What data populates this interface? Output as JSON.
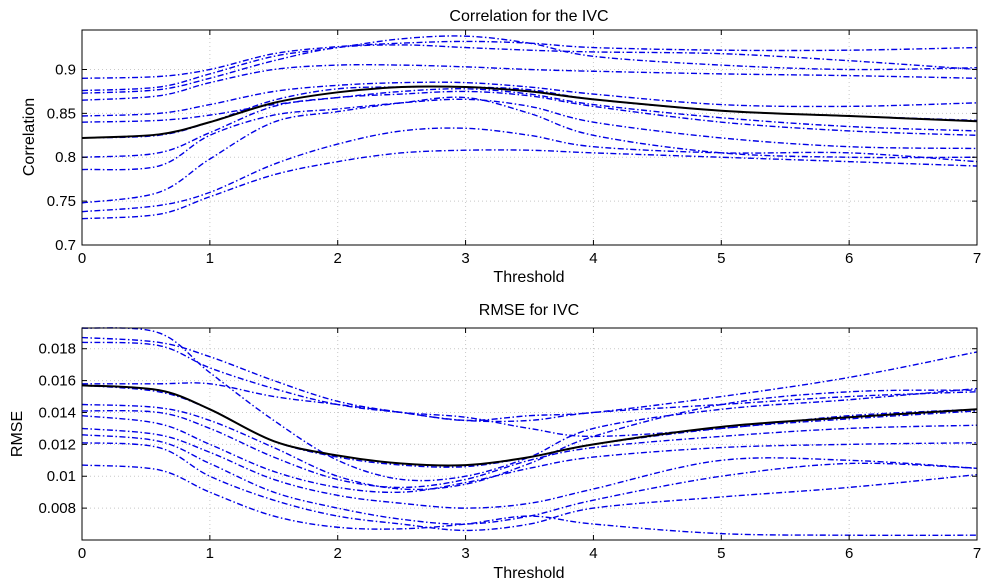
{
  "colors": {
    "series": "#0000e6",
    "mean": "#000000"
  },
  "chart_data": [
    {
      "type": "line",
      "title": "Correlation for the IVC",
      "xlabel": "Threshold",
      "ylabel": "Correlation",
      "xlim": [
        0,
        7
      ],
      "ylim": [
        0.7,
        0.945
      ],
      "xticks": [
        "0",
        "1",
        "2",
        "3",
        "4",
        "5",
        "6",
        "7"
      ],
      "yticks": [
        "0.7",
        "0.75",
        "0.8",
        "0.85",
        "0.9"
      ],
      "grid": true,
      "x": [
        0,
        0.6,
        1,
        1.5,
        2,
        2.5,
        3,
        3.5,
        4,
        5,
        6,
        7
      ],
      "series": [
        {
          "values": [
            0.89,
            0.892,
            0.9,
            0.918,
            0.926,
            0.93,
            0.932,
            0.93,
            0.925,
            0.922,
            0.922,
            0.925
          ]
        },
        {
          "values": [
            0.876,
            0.88,
            0.895,
            0.915,
            0.925,
            0.935,
            0.938,
            0.93,
            0.915,
            0.905,
            0.9,
            0.902
          ]
        },
        {
          "values": [
            0.873,
            0.877,
            0.89,
            0.91,
            0.925,
            0.928,
            0.925,
            0.922,
            0.92,
            0.918,
            0.91,
            0.9
          ]
        },
        {
          "values": [
            0.865,
            0.87,
            0.885,
            0.9,
            0.905,
            0.905,
            0.903,
            0.9,
            0.898,
            0.895,
            0.893,
            0.89
          ]
        },
        {
          "values": [
            0.847,
            0.85,
            0.86,
            0.875,
            0.882,
            0.885,
            0.885,
            0.88,
            0.872,
            0.86,
            0.858,
            0.862
          ]
        },
        {
          "values": [
            0.822,
            0.825,
            0.84,
            0.865,
            0.878,
            0.88,
            0.88,
            0.877,
            0.866,
            0.853,
            0.847,
            0.842
          ]
        },
        {
          "values": [
            0.84,
            0.842,
            0.848,
            0.86,
            0.868,
            0.875,
            0.878,
            0.872,
            0.86,
            0.845,
            0.835,
            0.83
          ]
        },
        {
          "values": [
            0.8,
            0.805,
            0.828,
            0.858,
            0.868,
            0.872,
            0.875,
            0.87,
            0.858,
            0.84,
            0.83,
            0.825
          ]
        },
        {
          "values": [
            0.786,
            0.79,
            0.825,
            0.848,
            0.855,
            0.862,
            0.866,
            0.858,
            0.84,
            0.822,
            0.812,
            0.81
          ]
        },
        {
          "values": [
            0.748,
            0.76,
            0.798,
            0.84,
            0.852,
            0.862,
            0.868,
            0.85,
            0.825,
            0.805,
            0.8,
            0.8
          ]
        },
        {
          "values": [
            0.738,
            0.745,
            0.76,
            0.792,
            0.815,
            0.83,
            0.833,
            0.825,
            0.812,
            0.805,
            0.805,
            0.795
          ]
        },
        {
          "values": [
            0.73,
            0.735,
            0.755,
            0.78,
            0.795,
            0.805,
            0.808,
            0.808,
            0.805,
            0.8,
            0.795,
            0.79
          ]
        }
      ],
      "mean": [
        0.822,
        0.826,
        0.84,
        0.862,
        0.874,
        0.88,
        0.88,
        0.875,
        0.866,
        0.853,
        0.847,
        0.841
      ]
    },
    {
      "type": "line",
      "title": "RMSE for IVC",
      "xlabel": "Threshold",
      "ylabel": "RMSE",
      "xlim": [
        0,
        7
      ],
      "ylim": [
        0.006,
        0.0193
      ],
      "xticks": [
        "0",
        "1",
        "2",
        "3",
        "4",
        "5",
        "6",
        "7"
      ],
      "yticks": [
        "0.008",
        "0.01",
        "0.012",
        "0.014",
        "0.016",
        "0.018"
      ],
      "grid": true,
      "x": [
        0,
        0.6,
        1,
        1.5,
        2,
        2.5,
        3,
        3.5,
        4,
        5,
        6,
        7
      ],
      "series": [
        {
          "values": [
            0.0193,
            0.019,
            0.0165,
            0.0135,
            0.011,
            0.0098,
            0.01,
            0.0112,
            0.013,
            0.0142,
            0.0148,
            0.0155
          ]
        },
        {
          "values": [
            0.0187,
            0.0184,
            0.0175,
            0.016,
            0.0147,
            0.014,
            0.0135,
            0.0135,
            0.014,
            0.0145,
            0.015,
            0.0153
          ]
        },
        {
          "values": [
            0.0184,
            0.0182,
            0.0168,
            0.0155,
            0.0145,
            0.014,
            0.0137,
            0.013,
            0.0125,
            0.013,
            0.0138,
            0.0142
          ]
        },
        {
          "values": [
            0.0158,
            0.0158,
            0.0158,
            0.015,
            0.0145,
            0.014,
            0.0135,
            0.0138,
            0.014,
            0.015,
            0.0162,
            0.0178
          ]
        },
        {
          "values": [
            0.0157,
            0.0153,
            0.0142,
            0.0122,
            0.0112,
            0.0107,
            0.0106,
            0.0112,
            0.012,
            0.013,
            0.0136,
            0.0141
          ]
        },
        {
          "values": [
            0.0145,
            0.0143,
            0.0135,
            0.0118,
            0.01,
            0.0092,
            0.0095,
            0.0108,
            0.0125,
            0.0145,
            0.0153,
            0.0154
          ]
        },
        {
          "values": [
            0.0141,
            0.014,
            0.013,
            0.0112,
            0.0098,
            0.0093,
            0.0098,
            0.011,
            0.0118,
            0.0125,
            0.013,
            0.0132
          ]
        },
        {
          "values": [
            0.0138,
            0.0133,
            0.012,
            0.0103,
            0.0093,
            0.009,
            0.0096,
            0.0105,
            0.0112,
            0.0118,
            0.012,
            0.0121
          ]
        },
        {
          "values": [
            0.013,
            0.0126,
            0.0115,
            0.0098,
            0.0088,
            0.0083,
            0.008,
            0.0083,
            0.0092,
            0.011,
            0.011,
            0.0105
          ]
        },
        {
          "values": [
            0.0126,
            0.0122,
            0.0108,
            0.009,
            0.008,
            0.0073,
            0.007,
            0.0075,
            0.0085,
            0.01,
            0.0108,
            0.0105
          ]
        },
        {
          "values": [
            0.0121,
            0.0118,
            0.01,
            0.0085,
            0.0075,
            0.007,
            0.0066,
            0.007,
            0.008,
            0.0087,
            0.0093,
            0.0101
          ]
        },
        {
          "values": [
            0.0107,
            0.0104,
            0.009,
            0.0075,
            0.0068,
            0.0067,
            0.007,
            0.0075,
            0.007,
            0.0064,
            0.0063,
            0.0063
          ]
        }
      ],
      "mean": [
        0.0157,
        0.0154,
        0.0142,
        0.0122,
        0.0113,
        0.0108,
        0.0107,
        0.0112,
        0.012,
        0.0131,
        0.0137,
        0.0142
      ]
    }
  ]
}
